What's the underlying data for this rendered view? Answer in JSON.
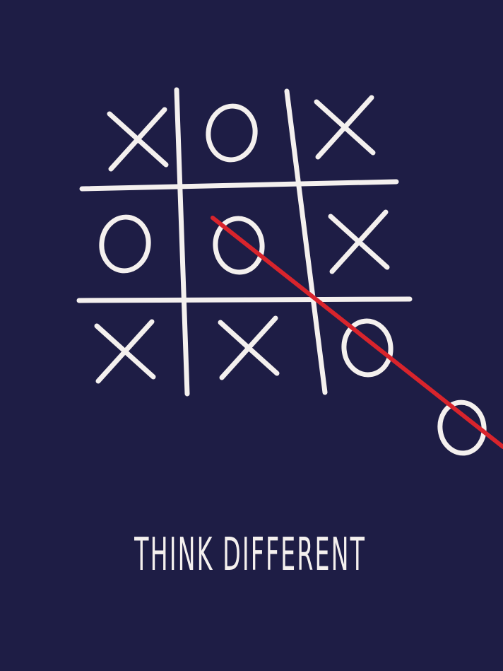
{
  "board": {
    "cells": [
      [
        "X",
        "O",
        "X"
      ],
      [
        "O",
        "O",
        "X"
      ],
      [
        "X",
        "X",
        "O"
      ]
    ],
    "extra_mark": "O"
  },
  "tagline": "THINK DIFFERENT",
  "colors": {
    "background": "#1e1d45",
    "chalk": "#f4f0ee",
    "strike": "#d8242c"
  }
}
